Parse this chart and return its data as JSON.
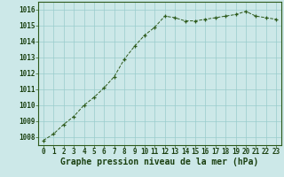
{
  "x": [
    0,
    1,
    2,
    3,
    4,
    5,
    6,
    7,
    8,
    9,
    10,
    11,
    12,
    13,
    14,
    15,
    16,
    17,
    18,
    19,
    20,
    21,
    22,
    23
  ],
  "y": [
    1007.8,
    1008.2,
    1008.8,
    1009.3,
    1010.0,
    1010.5,
    1011.1,
    1011.8,
    1012.9,
    1013.7,
    1014.4,
    1014.9,
    1015.6,
    1015.5,
    1015.3,
    1015.3,
    1015.4,
    1015.5,
    1015.6,
    1015.7,
    1015.9,
    1015.6,
    1015.5,
    1015.4
  ],
  "line_color": "#2d5a1b",
  "marker_color": "#2d5a1b",
  "bg_color": "#cce8e8",
  "grid_color": "#99cccc",
  "xlabel": "Graphe pression niveau de la mer (hPa)",
  "xlabel_color": "#1a4010",
  "ylim_min": 1007.5,
  "ylim_max": 1016.5,
  "xlim_min": -0.5,
  "xlim_max": 23.5,
  "yticks": [
    1008,
    1009,
    1010,
    1011,
    1012,
    1013,
    1014,
    1015,
    1016
  ],
  "xticks": [
    0,
    1,
    2,
    3,
    4,
    5,
    6,
    7,
    8,
    9,
    10,
    11,
    12,
    13,
    14,
    15,
    16,
    17,
    18,
    19,
    20,
    21,
    22,
    23
  ],
  "tick_fontsize": 5.5,
  "xlabel_fontsize": 7.0
}
